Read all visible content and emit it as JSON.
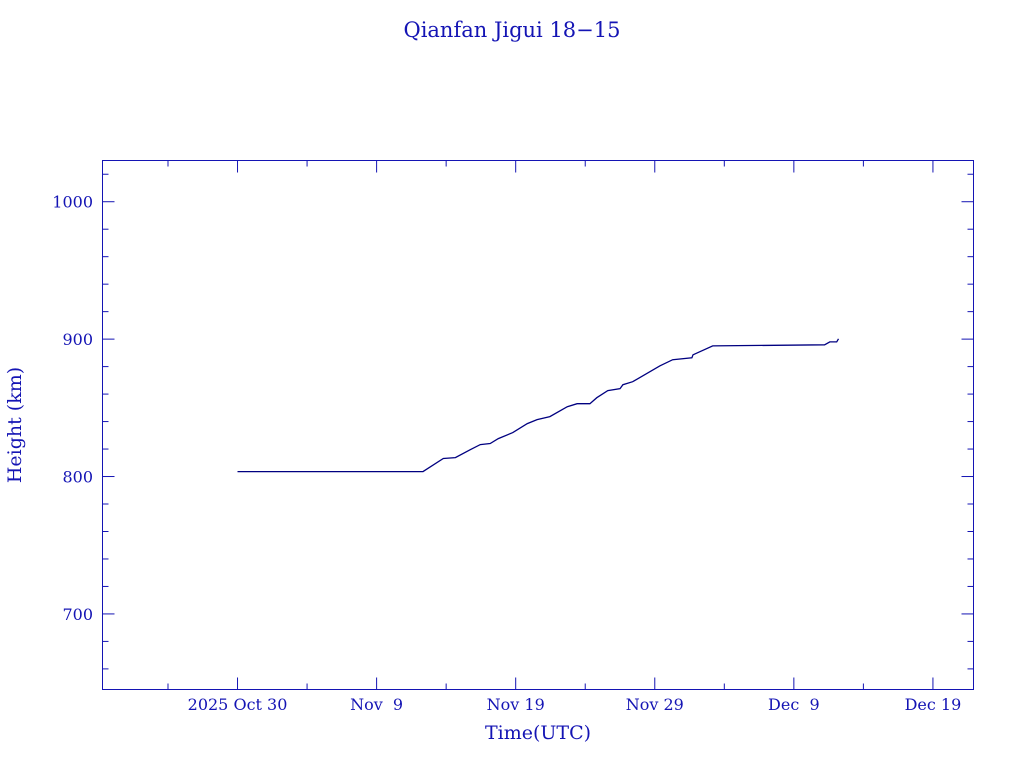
{
  "chart_data": {
    "type": "line",
    "title": "Qianfan Jigui 18−15",
    "xlabel": "Time(UTC)",
    "ylabel": "Height (km)",
    "xlim": [
      "2025-10-20T07:00",
      "2025-12-21T22:00"
    ],
    "ylim": [
      645,
      1030
    ],
    "x_ticks": [
      {
        "date": "2025-10-30",
        "label": "2025 Oct 30"
      },
      {
        "date": "2025-11-09",
        "label": "Nov  9"
      },
      {
        "date": "2025-11-19",
        "label": "Nov 19"
      },
      {
        "date": "2025-11-29",
        "label": "Nov 29"
      },
      {
        "date": "2025-12-09",
        "label": "Dec  9"
      },
      {
        "date": "2025-12-19",
        "label": "Dec 19"
      }
    ],
    "x_minor_tick_days": 5,
    "y_ticks": [
      700,
      800,
      900,
      1000
    ],
    "y_minor_tick_step": 20,
    "grid": false,
    "colors": {
      "axes": "#1414b4",
      "line": "#000080",
      "text": "#1414b4"
    },
    "series": [
      {
        "x": [
          "2025-10-30T00:00",
          "2025-11-12T08:00",
          "2025-11-13T19:00",
          "2025-11-14T16:00",
          "2025-11-15T18:00",
          "2025-11-16T11:00",
          "2025-11-17T04:00",
          "2025-11-17T18:00",
          "2025-11-18T19:00",
          "2025-11-19T20:00",
          "2025-11-20T13:00",
          "2025-11-21T11:00",
          "2025-11-22T17:00",
          "2025-11-23T10:00",
          "2025-11-24T08:00",
          "2025-11-24T20:00",
          "2025-11-25T15:00",
          "2025-11-26T12:00",
          "2025-11-26T17:00",
          "2025-11-27T10:00",
          "2025-11-29T09:00",
          "2025-11-30T07:00",
          "2025-12-01T16:00",
          "2025-12-01T18:00",
          "2025-12-03T04:00",
          "2025-12-11T05:00",
          "2025-12-11T14:00",
          "2025-12-12T02:00",
          "2025-12-12T05:00"
        ],
        "y": [
          803.6,
          803.6,
          813.1,
          813.8,
          819.6,
          823.2,
          824.0,
          827.6,
          832.0,
          838.5,
          841.4,
          843.6,
          850.8,
          853.0,
          853.0,
          857.4,
          862.5,
          863.9,
          866.8,
          869.0,
          880.6,
          885.0,
          886.4,
          888.6,
          895.1,
          895.9,
          898.0,
          898.0,
          900.2
        ]
      }
    ]
  }
}
